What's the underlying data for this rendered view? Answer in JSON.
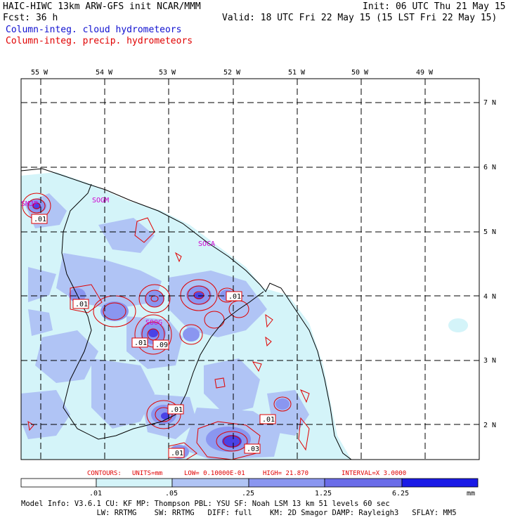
{
  "header": {
    "title_left": "HAIC-HIWC 13km ARW-GFS init   NCAR/MMM",
    "fcst": "Fcst:   36 h",
    "init": "Init: 06 UTC Thu 21 May 15",
    "valid": "Valid: 18 UTC Fri 22 May 15 (15 LST Fri 22 May 15)",
    "field_cloud": "Column-integ. cloud hydrometeors",
    "field_precip": "Column-integ. precip. hydrometeors"
  },
  "axes": {
    "lon_labels": [
      "55 W",
      "54 W",
      "53 W",
      "52 W",
      "51 W",
      "50 W",
      "49 W"
    ],
    "lat_labels": [
      "7 N",
      "6 N",
      "5 N",
      "4 N",
      "3 N",
      "2 N"
    ]
  },
  "stations": [
    "SMJP",
    "SOGM",
    "SOCA",
    "SOOG"
  ],
  "contour_labels": [
    ".01",
    ".01",
    ".01",
    ".01",
    ".09",
    ".01",
    ".01",
    ".03",
    ".01"
  ],
  "contour_info": {
    "contours": "CONTOURS:",
    "units": "UNITS=mm",
    "low": "LOW= 0.10000E-01",
    "high": "HIGH=  21.870",
    "interval": "INTERVAL=X  3.0000"
  },
  "colorbar": {
    "ticks": [
      ".01",
      ".05",
      ".25",
      "1.25",
      "6.25"
    ],
    "unit": "mm",
    "colors": [
      "#ffffff",
      "#d4f4f9",
      "#b0c4f5",
      "#8a96f0",
      "#6a6ce8",
      "#4a42e6",
      "#1a1ae6"
    ]
  },
  "model_info": {
    "line1": "Model Info: V3.6.1    CU: KF       MP: Thompson     PBL: YSU       SF: Noah LSM     13 km   51 levels   60 sec",
    "line2": "                 LW: RRTMG    SW: RRTMG   DIFF: full    KM: 2D Smagor DAMP: Rayleigh3   SFLAY: MM5"
  }
}
